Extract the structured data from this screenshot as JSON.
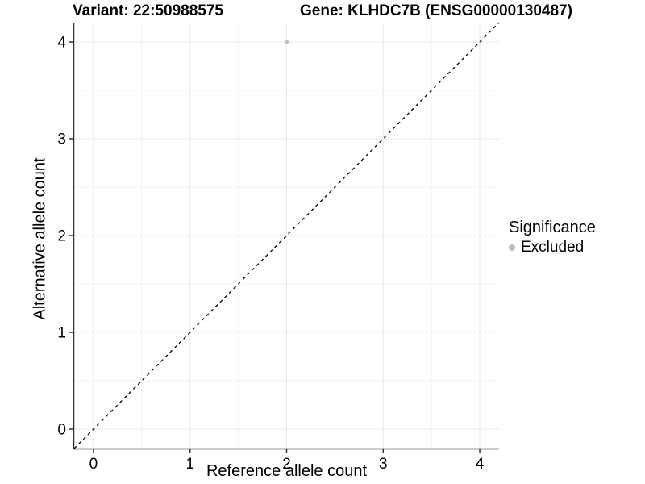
{
  "chart_data": {
    "type": "scatter",
    "title_left": "Variant: 22:50988575",
    "title_right": "Gene: KLHDC7B (ENSG00000130487)",
    "xlabel": "Reference allele count",
    "ylabel": "Alternative allele count",
    "xlim": [
      -0.2,
      4.2
    ],
    "ylim": [
      -0.2,
      4.2
    ],
    "xticks": [
      0,
      1,
      2,
      3,
      4
    ],
    "yticks": [
      0,
      1,
      2,
      3,
      4
    ],
    "minor_grid_step": 0.5,
    "grid": "major+minor",
    "identity_line": {
      "slope": 1,
      "intercept": 0,
      "style": "dashed",
      "color": "#000000"
    },
    "series": [
      {
        "name": "Excluded",
        "color": "#bebebe",
        "points": [
          {
            "x": 2,
            "y": 4
          }
        ]
      }
    ],
    "legend": {
      "title": "Significance",
      "position": "right",
      "items": [
        {
          "label": "Excluded",
          "color": "#bebebe"
        }
      ]
    }
  },
  "colors": {
    "background": "#ffffff",
    "grid_major": "#e8e8e8",
    "grid_minor": "#f2f2f2",
    "axis_line": "#333333",
    "tick_label": "#000000",
    "point": "#bebebe"
  }
}
